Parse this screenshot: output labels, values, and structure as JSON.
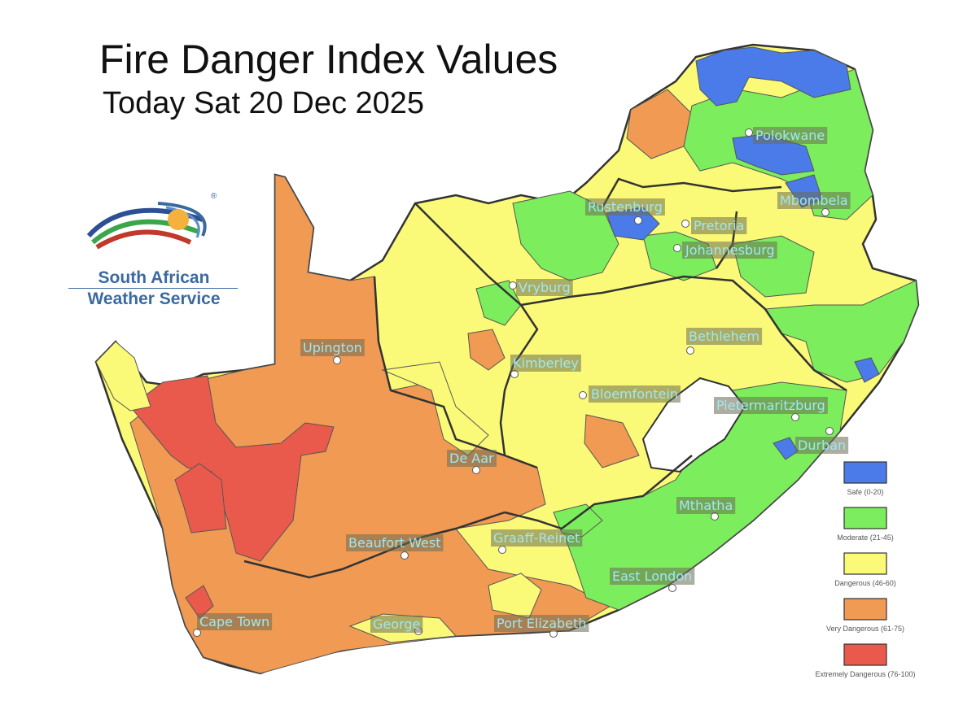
{
  "title": "Fire Danger Index Values",
  "subtitle": "Today Sat 20 Dec 2025",
  "logo": {
    "line1": "South African",
    "line2": "Weather Service",
    "mark": "®"
  },
  "cities": [
    {
      "name": "Polokwane"
    },
    {
      "name": "Rustenburg"
    },
    {
      "name": "Pretoria"
    },
    {
      "name": "Mbombela"
    },
    {
      "name": "Johannesburg"
    },
    {
      "name": "Vryburg"
    },
    {
      "name": "Bethlehem"
    },
    {
      "name": "Upington"
    },
    {
      "name": "Kimberley"
    },
    {
      "name": "Bloemfontein"
    },
    {
      "name": "Pietermaritzburg"
    },
    {
      "name": "Durban"
    },
    {
      "name": "De Aar"
    },
    {
      "name": "Mthatha"
    },
    {
      "name": "Beaufort West"
    },
    {
      "name": "Graaff-Reinet"
    },
    {
      "name": "East London"
    },
    {
      "name": "Cape Town"
    },
    {
      "name": "George"
    },
    {
      "name": "Port Elizabeth"
    }
  ],
  "legend": [
    {
      "label": "Safe (0-20)",
      "color": "#4a7be8"
    },
    {
      "label": "Moderate (21-45)",
      "color": "#7ced5c"
    },
    {
      "label": "Dangerous (46-60)",
      "color": "#fafa78"
    },
    {
      "label": "Very Dangerous (61-75)",
      "color": "#f09a54"
    },
    {
      "label": "Extremely Dangerous (76-100)",
      "color": "#ea5a4c"
    }
  ]
}
